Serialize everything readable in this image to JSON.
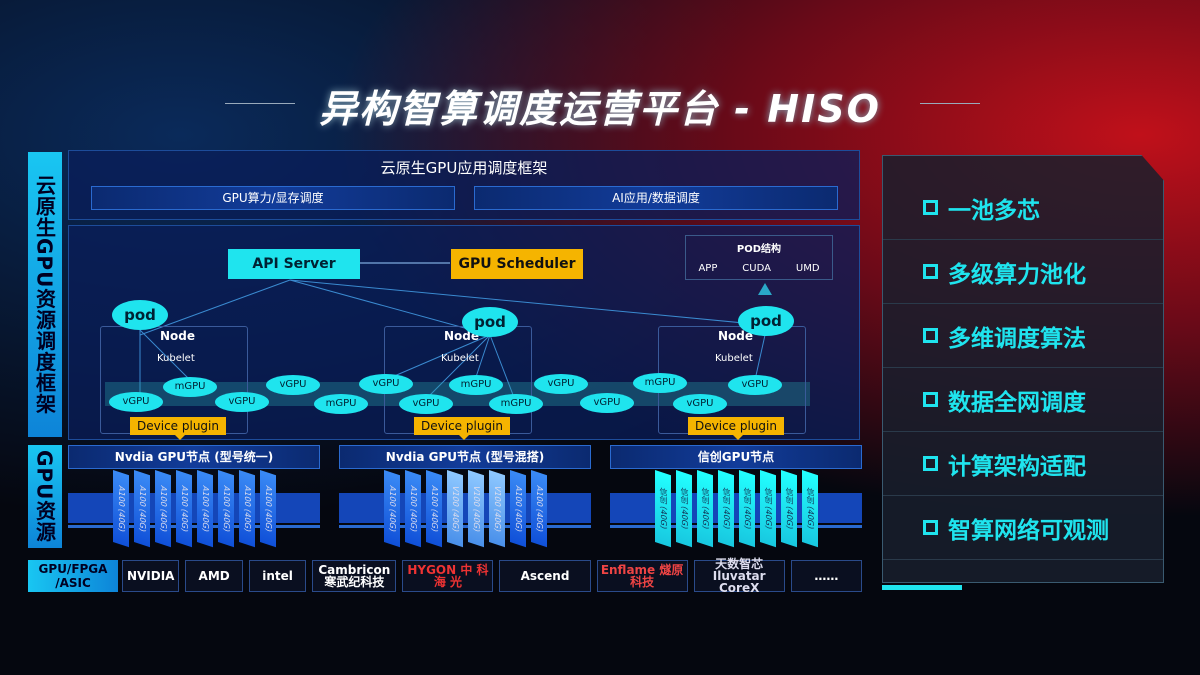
{
  "title": "异构智算调度运营平台 - HISO",
  "left_labels": {
    "top": "云原生GPU资源调度框架",
    "mid": "GPU资源",
    "bottom": "GPU/FPGA /ASIC"
  },
  "framework": {
    "title": "云原生GPU应用调度框架",
    "bar1": "GPU算力/显存调度",
    "bar2": "AI应用/数据调度"
  },
  "api_server": "API Server",
  "gpu_scheduler": "GPU Scheduler",
  "pod_struct": {
    "title": "POD结构",
    "items": [
      "APP",
      "CUDA",
      "UMD"
    ]
  },
  "pod": "pod",
  "node": "Node",
  "kubelet": "Kubelet",
  "device_plugin": "Device plugin",
  "vgpu": "vGPU",
  "mgpu": "mGPU",
  "clusters": [
    {
      "title": "Nvdia GPU节点 (型号统一)",
      "cards": [
        "A100 (40G)",
        "A100 (40G)",
        "A100 (40G)",
        "A100 (40G)",
        "A100 (40G)",
        "A100 (40G)",
        "A100 (40G)",
        "A100 (40G)"
      ]
    },
    {
      "title": "Nvdia GPU节点 (型号混搭)",
      "cards": [
        "A100 (40G)",
        "A100 (40G)",
        "A100 (40G)",
        "V100 (40G)",
        "V100 (40G)",
        "V100 (40G)",
        "A100 (40G)",
        "A100 (40G)"
      ]
    },
    {
      "title": "信创GPU节点",
      "cards": [
        "信创 (40G)",
        "信创 (40G)",
        "信创 (40G)",
        "信创 (40G)",
        "信创 (40G)",
        "信创 (40G)",
        "信创 (40G)",
        "信创 (40G)"
      ]
    }
  ],
  "vendors": [
    "NVIDIA",
    "AMD",
    "intel",
    "Cambricon 寒武纪科技",
    "HYGON 中 科 海 光",
    "Ascend",
    "Enflame 燧原科技",
    "天数智芯 Iluvatar CoreX",
    "……"
  ],
  "features": [
    "一池多芯",
    "多级算力池化",
    "多维调度算法",
    "数据全网调度",
    "计算架构适配",
    "智算网络可观测"
  ]
}
